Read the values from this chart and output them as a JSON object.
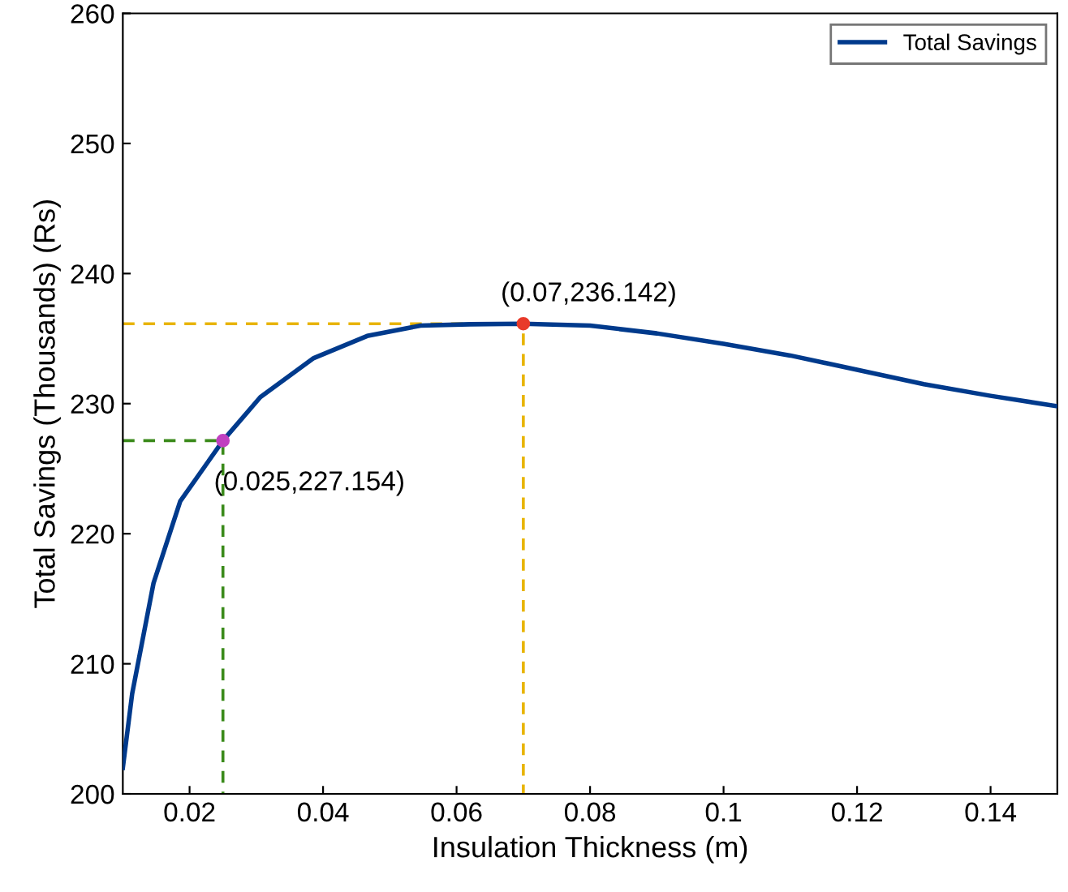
{
  "chart_data": {
    "type": "line",
    "xlabel": "Insulation Thickness (m)",
    "ylabel": "Total Savings (Thousands) (Rs)",
    "xlim": [
      0.01,
      0.15
    ],
    "ylim": [
      200,
      260
    ],
    "xticks": [
      0.02,
      0.04,
      0.06,
      0.08,
      {
        "value": 0.1,
        "label": "0.1"
      },
      0.12,
      0.14
    ],
    "yticks": [
      200,
      210,
      220,
      230,
      240,
      250,
      260
    ],
    "grid": false,
    "legend": "top right",
    "series": [
      {
        "name": "Total Savings",
        "color": "#003a8c",
        "line_style": "solid",
        "marker": "none",
        "x": [
          0.01,
          0.0114,
          0.0146,
          0.0186,
          0.025,
          0.0306,
          0.0386,
          0.0466,
          0.0546,
          0.062,
          0.07,
          0.08,
          0.09,
          0.1,
          0.11,
          0.12,
          0.13,
          0.14,
          0.15
        ],
        "values": [
          202,
          207.7,
          216.2,
          222.5,
          227.154,
          230.5,
          233.5,
          235.2,
          236.0,
          236.1,
          236.142,
          236.0,
          235.4,
          234.6,
          233.7,
          232.6,
          231.5,
          230.6,
          229.8
        ]
      },
      {
        "type": "line",
        "color": "#3a8a1a",
        "line_style": "dashed",
        "marker": "none",
        "x": [
          0.01,
          0.025,
          0.025
        ],
        "values": [
          227.154,
          227.154,
          200
        ]
      },
      {
        "type": "line",
        "color": "#e8b400",
        "line_style": "dashed",
        "marker": "none",
        "x": [
          0.01,
          0.07,
          0.07
        ],
        "values": [
          236.142,
          236.142,
          200
        ]
      },
      {
        "type": "scatter",
        "color": "#c040c0",
        "marker": "circle",
        "x": [
          0.025
        ],
        "values": [
          227.154
        ]
      },
      {
        "type": "scatter",
        "color": "#e83a2a",
        "marker": "circle",
        "x": [
          0.07
        ],
        "values": [
          236.142
        ]
      }
    ],
    "annotations": [
      {
        "text": "(0.025,227.154)",
        "x": 0.025,
        "y": 227.154
      },
      {
        "text": "(0.07,236.142)",
        "x": 0.07,
        "y": 236.142
      }
    ]
  }
}
